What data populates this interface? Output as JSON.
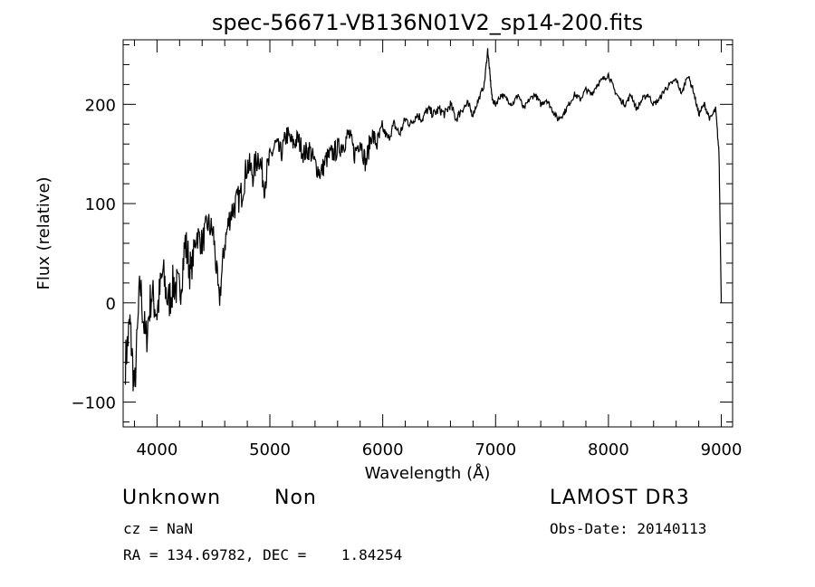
{
  "chart_data": {
    "type": "line",
    "title": "spec-56671-VB136N01V2_sp14-200.fits",
    "xlabel": "Wavelength (Å)",
    "ylabel": "Flux (relative)",
    "xlim": [
      3700,
      9100
    ],
    "ylim": [
      -125,
      265
    ],
    "xticks": [
      4000,
      5000,
      6000,
      7000,
      8000,
      9000
    ],
    "yticks": [
      -100,
      0,
      100,
      200
    ],
    "xtick_labels": [
      "4000",
      "5000",
      "6000",
      "7000",
      "8000",
      "9000"
    ],
    "ytick_labels": [
      "−100",
      "0",
      "100",
      "200"
    ],
    "grid": false,
    "series": [
      {
        "x": [
          3720,
          3760,
          3800,
          3850,
          3900,
          3950,
          4000,
          4050,
          4100,
          4150,
          4200,
          4250,
          4300,
          4350,
          4400,
          4450,
          4500,
          4550,
          4600,
          4650,
          4700,
          4750,
          4800,
          4850,
          4900,
          4950,
          5000,
          5050,
          5100,
          5150,
          5200,
          5250,
          5300,
          5350,
          5400,
          5450,
          5500,
          5550,
          5600,
          5650,
          5700,
          5750,
          5800,
          5850,
          5900,
          5950,
          6000,
          6050,
          6100,
          6150,
          6200,
          6250,
          6300,
          6350,
          6400,
          6450,
          6500,
          6550,
          6600,
          6650,
          6700,
          6750,
          6800,
          6850,
          6900,
          6930,
          6950,
          6970,
          7000,
          7050,
          7100,
          7150,
          7200,
          7250,
          7300,
          7350,
          7400,
          7450,
          7500,
          7550,
          7600,
          7650,
          7700,
          7750,
          7800,
          7850,
          7900,
          7950,
          8000,
          8050,
          8100,
          8150,
          8200,
          8250,
          8300,
          8350,
          8400,
          8450,
          8500,
          8550,
          8600,
          8650,
          8700,
          8750,
          8800,
          8850,
          8900,
          8950,
          8980,
          9000
        ],
        "y": [
          -60,
          -20,
          -90,
          20,
          -40,
          10,
          -10,
          30,
          0,
          20,
          10,
          60,
          30,
          70,
          60,
          80,
          70,
          0,
          60,
          90,
          100,
          110,
          140,
          130,
          150,
          120,
          145,
          160,
          150,
          170,
          160,
          165,
          150,
          155,
          140,
          130,
          145,
          150,
          155,
          160,
          170,
          150,
          165,
          140,
          170,
          160,
          175,
          165,
          180,
          170,
          185,
          180,
          190,
          185,
          195,
          190,
          195,
          190,
          200,
          185,
          195,
          200,
          190,
          205,
          220,
          255,
          230,
          205,
          200,
          210,
          205,
          200,
          210,
          195,
          205,
          210,
          200,
          205,
          195,
          185,
          190,
          200,
          210,
          205,
          215,
          210,
          220,
          225,
          230,
          215,
          205,
          200,
          210,
          195,
          205,
          210,
          200,
          205,
          215,
          220,
          225,
          210,
          230,
          215,
          190,
          200,
          185,
          195,
          150,
          0
        ]
      }
    ]
  },
  "info": {
    "object_class": "Unknown",
    "subclass": "Non",
    "cz": "cz = NaN",
    "coords": "RA = 134.69782, DEC =    1.84254",
    "survey": "LAMOST DR3",
    "obs_date": "Obs-Date: 20140113"
  }
}
